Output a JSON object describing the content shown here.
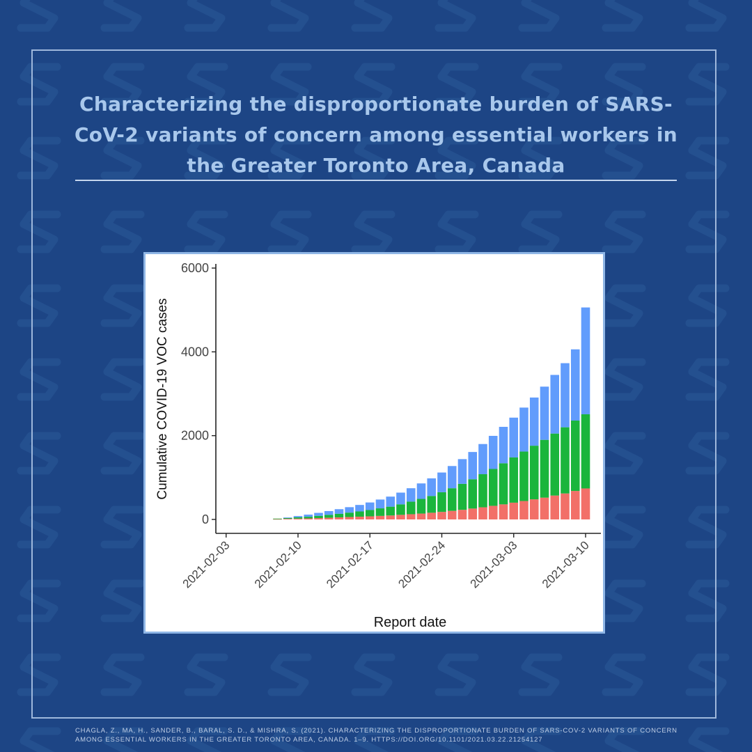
{
  "page": {
    "title": "Characterizing the disproportionate burden of SARS-CoV-2 variants of concern among essential workers in the Greater Toronto Area, Canada",
    "citation": "Chagla, Z., Ma, H., Sander, B., Baral, S. D., & Mishra, S. (2021). Characterizing the disproportionate burden of SARS-CoV-2 variants of concern among essential workers in the Greater Toronto Area, Canada. 1–9. https://doi.org/10.1101/2021.03.22.21254127",
    "logo_icon": "s-logo-icon",
    "colors": {
      "background": "#1d4585",
      "pattern": "#24508f",
      "title": "#a9c8ec"
    }
  },
  "chart_data": {
    "type": "bar",
    "stacked": true,
    "title": "",
    "xlabel": "Report date",
    "ylabel": "Cumulative COVID-19 VOC cases",
    "ylim": [
      0,
      6000
    ],
    "yticks": [
      0,
      2000,
      4000,
      6000
    ],
    "xlim": [
      -1,
      35
    ],
    "xticks": [
      {
        "day": 0,
        "label": "2021-02-03"
      },
      {
        "day": 7,
        "label": "2021-02-10"
      },
      {
        "day": 14,
        "label": "2021-02-17"
      },
      {
        "day": 21,
        "label": "2021-02-24"
      },
      {
        "day": 28,
        "label": "2021-03-03"
      },
      {
        "day": 35,
        "label": "2021-03-10"
      }
    ],
    "days": [
      5,
      6,
      7,
      8,
      9,
      10,
      11,
      12,
      13,
      14,
      15,
      16,
      17,
      18,
      19,
      20,
      21,
      22,
      23,
      24,
      25,
      26,
      27,
      28,
      29,
      30,
      31,
      32,
      33,
      34,
      35
    ],
    "series": [
      {
        "name": "Red",
        "color": "#f27068",
        "values": [
          10,
          15,
          20,
          25,
          32,
          40,
          50,
          58,
          66,
          75,
          85,
          95,
          110,
          125,
          140,
          160,
          180,
          205,
          230,
          260,
          290,
          325,
          360,
          400,
          440,
          480,
          520,
          570,
          620,
          680,
          740
        ]
      },
      {
        "name": "Green",
        "color": "#1ab53c",
        "values": [
          10,
          20,
          30,
          40,
          55,
          70,
          85,
          105,
          125,
          150,
          180,
          210,
          250,
          300,
          350,
          400,
          470,
          540,
          620,
          700,
          790,
          880,
          980,
          1080,
          1180,
          1280,
          1380,
          1480,
          1580,
          1680,
          1770
        ]
      },
      {
        "name": "Blue",
        "color": "#619cfc",
        "values": [
          0,
          10,
          30,
          50,
          70,
          90,
          110,
          130,
          155,
          180,
          210,
          240,
          280,
          320,
          370,
          420,
          470,
          530,
          590,
          650,
          720,
          790,
          870,
          950,
          1050,
          1150,
          1270,
          1400,
          1530,
          1700,
          2550
        ]
      }
    ]
  }
}
